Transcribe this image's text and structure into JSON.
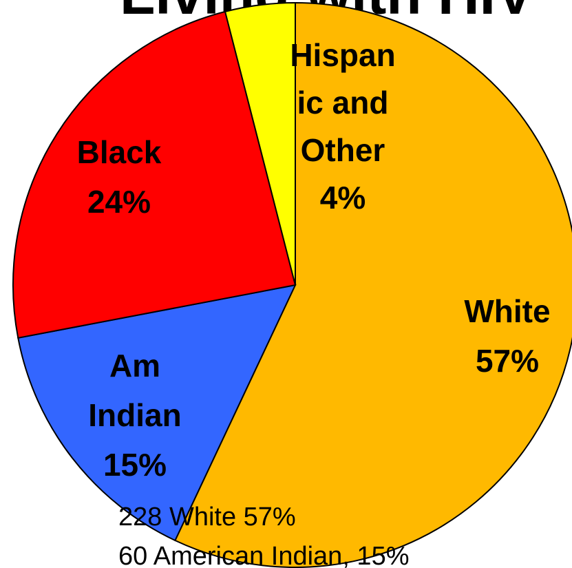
{
  "chart_data": {
    "type": "pie",
    "title": "Living with HIV",
    "slices": [
      {
        "name": "White",
        "value": 57,
        "color": "#FFB900",
        "label_lines": [
          "White",
          "57%"
        ]
      },
      {
        "name": "Am Indian",
        "value": 15,
        "color": "#3366FF",
        "label_lines": [
          "Am",
          "Indian",
          "15%"
        ]
      },
      {
        "name": "Black",
        "value": 24,
        "color": "#FF0000",
        "label_lines": [
          "Black",
          "24%"
        ]
      },
      {
        "name": "Hispanic and Other",
        "value": 4,
        "color": "#FFFF00",
        "label_lines": [
          "Hispan",
          "ic and",
          "Other",
          "4%"
        ]
      }
    ],
    "annotations": [
      "228 White 57%",
      "60 American Indian, 15%"
    ]
  }
}
